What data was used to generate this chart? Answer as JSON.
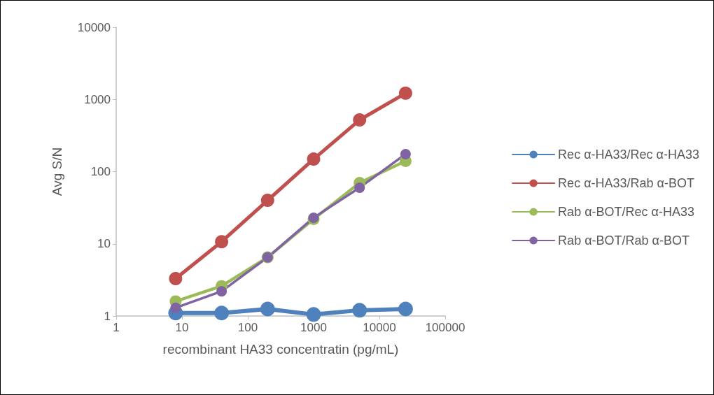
{
  "chart_data": {
    "type": "line",
    "xlabel": "recombinant HA33 concentratin (pg/mL)",
    "ylabel": "Avg S/N",
    "log": "xy",
    "x": [
      8,
      40,
      200,
      1000,
      5000,
      25000
    ],
    "series": [
      {
        "name": "Rec α-HA33/Rec α-HA33",
        "color": "#4f81bd",
        "values": [
          1.1,
          1.1,
          1.25,
          1.05,
          1.2,
          1.25
        ]
      },
      {
        "name": "Rec α-HA33/Rab α-BOT",
        "color": "#c0504d",
        "values": [
          3.3,
          10.7,
          40,
          149,
          520,
          1220
        ]
      },
      {
        "name": "Rab α-BOT/Rec α-HA33",
        "color": "#9bbb59",
        "values": [
          1.6,
          2.6,
          6.5,
          22,
          70,
          140
        ]
      },
      {
        "name": "Rab α-BOT/Rab α-BOT",
        "color": "#8064a2",
        "values": [
          1.3,
          2.2,
          6.5,
          23,
          60,
          175
        ]
      }
    ],
    "xlim": [
      1,
      100000
    ],
    "xticks": [
      1,
      10,
      100,
      1000,
      10000,
      100000
    ],
    "ylim": [
      1,
      10000
    ],
    "yticks": [
      1,
      10,
      100,
      1000,
      10000
    ],
    "grid": false,
    "legend": "right",
    "marker": "circle",
    "line_style": "solid"
  }
}
